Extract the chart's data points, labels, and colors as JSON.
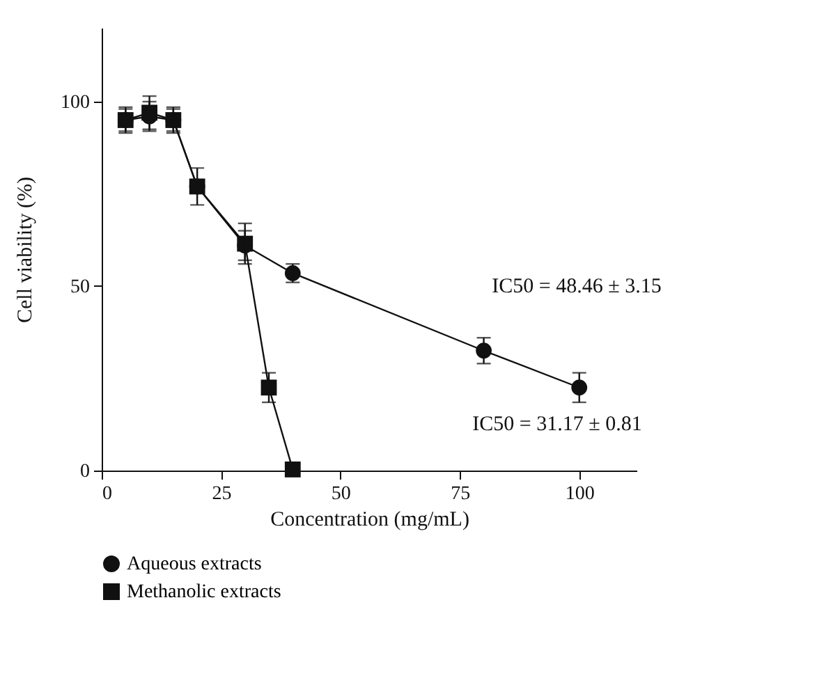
{
  "chart_data": {
    "type": "line",
    "xlabel": "Concentration (mg/mL)",
    "ylabel": "Cell viability (%)",
    "xlim": [
      0,
      112
    ],
    "xticks": [
      0,
      25,
      50,
      75,
      100
    ],
    "ylim": [
      0,
      120
    ],
    "yticks": [
      0,
      50,
      100
    ],
    "grid": false,
    "legend": "bottom left",
    "series": [
      {
        "name": "Aqueous extracts",
        "color": "#111111",
        "marker": "circle",
        "x": [
          5,
          10,
          15,
          20,
          30,
          40,
          80,
          100
        ],
        "values": [
          95,
          96,
          95,
          77,
          61,
          53.5,
          32.5,
          22.5
        ],
        "errors": [
          3,
          4,
          3,
          null,
          4,
          2.5,
          3.5,
          4
        ]
      },
      {
        "name": "Methanolic extracts",
        "color": "#111111",
        "marker": "square",
        "x": [
          5,
          10,
          15,
          20,
          30,
          35,
          40
        ],
        "values": [
          95,
          97,
          95,
          77,
          61.5,
          22.5,
          0.3
        ],
        "errors": [
          3.5,
          4.5,
          3.5,
          5,
          5.5,
          4,
          null
        ]
      }
    ],
    "annotations": [
      "IC50 = 48.46 ± 3.15",
      "IC50 = 31.17 ± 0.81"
    ]
  }
}
